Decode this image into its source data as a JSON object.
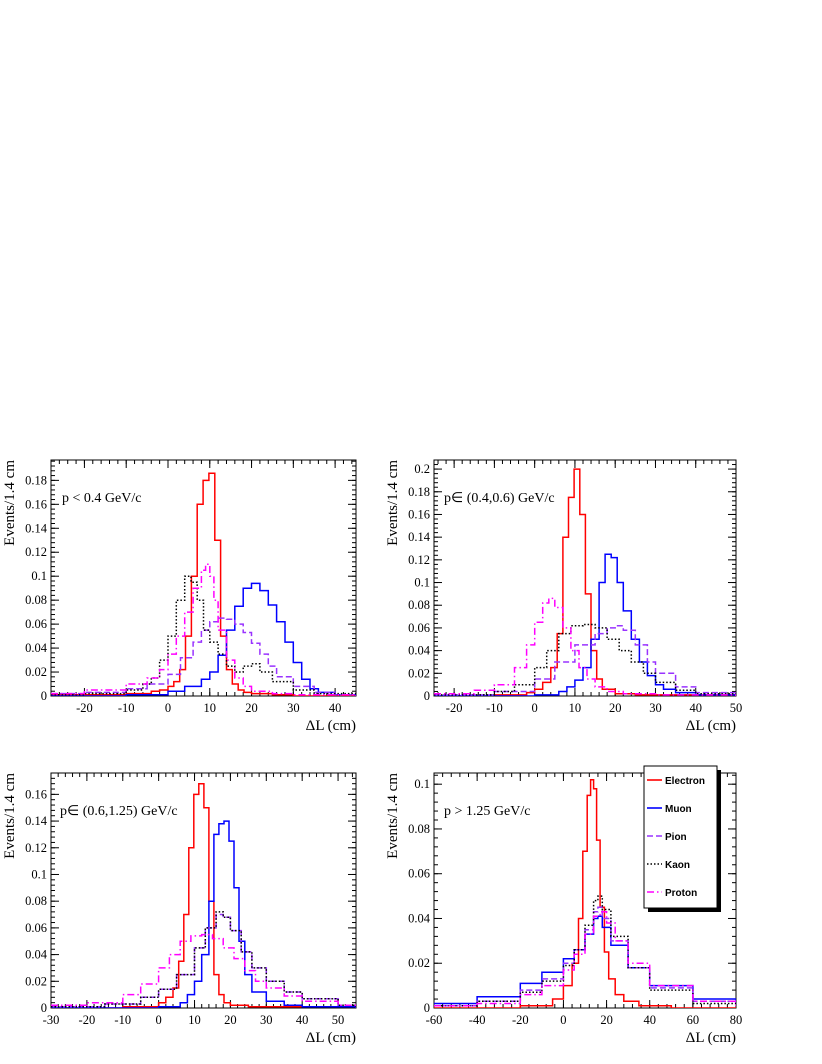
{
  "chart_data": [
    {
      "type": "line",
      "label": "p < 0.4 GeV/c",
      "ylabel": "Events/1.4 cm",
      "xlabel": "ΔL (cm)",
      "xlim": [
        -28,
        45
      ],
      "ylim": [
        0,
        0.197
      ],
      "xticks": [
        -20,
        -10,
        0,
        10,
        20,
        30,
        40
      ],
      "yticks": [
        0.02,
        0.04,
        0.06,
        0.08,
        0.1,
        0.12,
        0.14,
        0.16,
        0.18
      ],
      "ytick_labels": [
        "0.02",
        "0.04",
        "0.06",
        "0.08",
        "0.1",
        "0.12",
        "0.14",
        "0.16",
        "0.18"
      ],
      "y_zero_label": "0",
      "series": [
        {
          "name": "Electron",
          "color": "#ff0000",
          "style": "solid",
          "x": [
            -28,
            -20,
            -10,
            -6,
            -4,
            -2,
            0,
            1.4,
            2.8,
            4.2,
            5.6,
            7,
            8.4,
            9.8,
            11.2,
            12.6,
            14,
            15.4,
            16.8,
            18.2,
            20,
            25,
            30,
            45
          ],
          "y": [
            0.001,
            0.001,
            0.002,
            0.002,
            0.004,
            0.005,
            0.008,
            0.012,
            0.022,
            0.05,
            0.1,
            0.16,
            0.18,
            0.186,
            0.13,
            0.05,
            0.022,
            0.01,
            0.005,
            0.003,
            0.002,
            0.001,
            0,
            0
          ]
        },
        {
          "name": "Muon",
          "color": "#0000ff",
          "style": "solid",
          "x": [
            -28,
            -10,
            0,
            4,
            8,
            10,
            12,
            14,
            16,
            18,
            20,
            22,
            24,
            26,
            28,
            30,
            32,
            34,
            36,
            40,
            45
          ],
          "y": [
            0,
            0.001,
            0.004,
            0.008,
            0.014,
            0.02,
            0.034,
            0.055,
            0.075,
            0.09,
            0.094,
            0.088,
            0.076,
            0.062,
            0.045,
            0.028,
            0.014,
            0.006,
            0.003,
            0.001,
            0
          ]
        },
        {
          "name": "Pion",
          "color": "#9933ff",
          "style": "dashed",
          "x": [
            -28,
            -20,
            -10,
            -5,
            0,
            3,
            6,
            8,
            10,
            12,
            14,
            16,
            18,
            20,
            22,
            24,
            26,
            30,
            35,
            40,
            45
          ],
          "y": [
            0.002,
            0.003,
            0.006,
            0.01,
            0.018,
            0.032,
            0.045,
            0.055,
            0.062,
            0.065,
            0.064,
            0.06,
            0.053,
            0.044,
            0.035,
            0.025,
            0.016,
            0.008,
            0.003,
            0.001,
            0
          ]
        },
        {
          "name": "Kaon",
          "color": "#000000",
          "style": "dotted",
          "x": [
            -28,
            -20,
            -10,
            -6,
            -4,
            -2,
            0,
            2,
            4,
            5.5,
            7,
            8.5,
            10,
            12,
            14,
            16,
            18,
            20,
            22,
            25,
            30,
            35,
            45
          ],
          "y": [
            0.001,
            0.002,
            0.005,
            0.01,
            0.015,
            0.03,
            0.05,
            0.08,
            0.1,
            0.095,
            0.08,
            0.055,
            0.045,
            0.035,
            0.025,
            0.02,
            0.025,
            0.027,
            0.02,
            0.012,
            0.005,
            0.002,
            0
          ]
        },
        {
          "name": "Proton",
          "color": "#ff00ff",
          "style": "dashdot",
          "x": [
            -28,
            -20,
            -10,
            -5,
            -2,
            0,
            2,
            4,
            6,
            8,
            9,
            10,
            11,
            12,
            14,
            16,
            18,
            20,
            25,
            30,
            45
          ],
          "y": [
            0.002,
            0.005,
            0.01,
            0.015,
            0.022,
            0.035,
            0.05,
            0.07,
            0.09,
            0.105,
            0.11,
            0.1,
            0.08,
            0.055,
            0.03,
            0.015,
            0.008,
            0.004,
            0.002,
            0.001,
            0
          ]
        }
      ]
    },
    {
      "type": "line",
      "label": "p∈ (0.4,0.6) GeV/c",
      "ylabel": "Events/1.4 cm",
      "xlabel": "ΔL (cm)",
      "xlim": [
        -25,
        50
      ],
      "ylim": [
        0,
        0.208
      ],
      "xticks": [
        -20,
        -10,
        0,
        10,
        20,
        30,
        40,
        50
      ],
      "yticks": [
        0.02,
        0.04,
        0.06,
        0.08,
        0.1,
        0.12,
        0.14,
        0.16,
        0.18,
        0.2
      ],
      "ytick_labels": [
        "0.02",
        "0.04",
        "0.06",
        "0.08",
        "0.1",
        "0.12",
        "0.14",
        "0.16",
        "0.18",
        "0.2"
      ],
      "y_zero_label": "0",
      "series": [
        {
          "name": "Electron",
          "color": "#ff0000",
          "style": "solid",
          "x": [
            -25,
            -10,
            -2,
            0,
            2,
            4,
            5.6,
            7,
            8.4,
            9.8,
            11.2,
            12.6,
            14,
            15.4,
            16.8,
            20,
            25,
            50
          ],
          "y": [
            0,
            0.001,
            0.003,
            0.006,
            0.012,
            0.025,
            0.055,
            0.14,
            0.175,
            0.2,
            0.16,
            0.09,
            0.04,
            0.015,
            0.006,
            0.002,
            0.001,
            0
          ]
        },
        {
          "name": "Muon",
          "color": "#0000ff",
          "style": "solid",
          "x": [
            -25,
            0,
            6,
            8,
            10,
            12,
            14,
            16,
            17.5,
            19,
            20.5,
            22,
            24,
            26,
            28,
            30,
            32,
            35,
            40,
            50
          ],
          "y": [
            0,
            0.001,
            0.004,
            0.008,
            0.014,
            0.025,
            0.05,
            0.1,
            0.125,
            0.122,
            0.1,
            0.075,
            0.05,
            0.03,
            0.018,
            0.01,
            0.006,
            0.003,
            0.001,
            0
          ]
        },
        {
          "name": "Pion",
          "color": "#9933ff",
          "style": "dashed",
          "x": [
            -25,
            -10,
            0,
            5,
            10,
            15,
            18,
            20,
            22,
            25,
            28,
            30,
            35,
            40,
            50
          ],
          "y": [
            0.001,
            0.004,
            0.015,
            0.03,
            0.045,
            0.055,
            0.06,
            0.062,
            0.058,
            0.045,
            0.03,
            0.02,
            0.008,
            0.003,
            0
          ]
        },
        {
          "name": "Kaon",
          "color": "#000000",
          "style": "dotted",
          "x": [
            -25,
            -10,
            -5,
            0,
            3,
            6,
            9,
            12,
            15,
            18,
            21,
            24,
            27,
            30,
            35,
            40,
            50
          ],
          "y": [
            0.001,
            0.004,
            0.01,
            0.025,
            0.04,
            0.055,
            0.062,
            0.063,
            0.06,
            0.05,
            0.04,
            0.03,
            0.02,
            0.012,
            0.005,
            0.002,
            0
          ]
        },
        {
          "name": "Proton",
          "color": "#ff00ff",
          "style": "dashdot",
          "x": [
            -25,
            -15,
            -10,
            -5,
            -2,
            0,
            2,
            3.5,
            5,
            7,
            9,
            11,
            13,
            15,
            18,
            22,
            30,
            50
          ],
          "y": [
            0.002,
            0.005,
            0.01,
            0.025,
            0.045,
            0.065,
            0.082,
            0.086,
            0.078,
            0.06,
            0.04,
            0.025,
            0.015,
            0.008,
            0.004,
            0.002,
            0.001,
            0
          ]
        }
      ]
    },
    {
      "type": "line",
      "label": "p∈ (0.6,1.25) GeV/c",
      "ylabel": "Events/1.4 cm",
      "xlabel": "ΔL (cm)",
      "xlim": [
        -30,
        55
      ],
      "ylim": [
        0,
        0.176
      ],
      "xticks": [
        -30,
        -20,
        -10,
        0,
        10,
        20,
        30,
        40,
        50
      ],
      "yticks": [
        0.02,
        0.04,
        0.06,
        0.08,
        0.1,
        0.12,
        0.14,
        0.16
      ],
      "ytick_labels": [
        "0.02",
        "0.04",
        "0.06",
        "0.08",
        "0.1",
        "0.12",
        "0.14",
        "0.16"
      ],
      "y_zero_label": "0",
      "series": [
        {
          "name": "Electron",
          "color": "#ff0000",
          "style": "solid",
          "x": [
            -30,
            -10,
            0,
            2,
            4,
            5.6,
            7,
            8.4,
            9.8,
            11.2,
            12.6,
            14,
            15.4,
            16.8,
            18.2,
            20,
            25,
            55
          ],
          "y": [
            0,
            0.001,
            0.004,
            0.008,
            0.015,
            0.035,
            0.07,
            0.12,
            0.16,
            0.168,
            0.15,
            0.08,
            0.025,
            0.01,
            0.004,
            0.002,
            0.001,
            0
          ]
        },
        {
          "name": "Muon",
          "color": "#0000ff",
          "style": "solid",
          "x": [
            -30,
            0,
            6,
            8,
            10,
            12,
            14,
            15.4,
            16.8,
            18.2,
            19.6,
            21,
            22.4,
            24,
            26,
            30,
            35,
            40,
            55
          ],
          "y": [
            0,
            0.001,
            0.004,
            0.01,
            0.02,
            0.04,
            0.08,
            0.13,
            0.138,
            0.14,
            0.125,
            0.09,
            0.05,
            0.025,
            0.012,
            0.005,
            0.002,
            0.001,
            0
          ]
        },
        {
          "name": "Pion",
          "color": "#9933ff",
          "style": "dashed",
          "x": [
            -30,
            -15,
            -5,
            0,
            5,
            10,
            13,
            16,
            18,
            20,
            23,
            26,
            30,
            35,
            40,
            50,
            55
          ],
          "y": [
            0.001,
            0.003,
            0.008,
            0.014,
            0.025,
            0.045,
            0.06,
            0.07,
            0.068,
            0.058,
            0.042,
            0.03,
            0.02,
            0.012,
            0.007,
            0.002,
            0.001
          ]
        },
        {
          "name": "Kaon",
          "color": "#000000",
          "style": "dotted",
          "x": [
            -30,
            -15,
            -5,
            0,
            5,
            10,
            13,
            16,
            18,
            20,
            23,
            26,
            30,
            35,
            40,
            50,
            55
          ],
          "y": [
            0.001,
            0.003,
            0.008,
            0.014,
            0.025,
            0.045,
            0.06,
            0.072,
            0.068,
            0.058,
            0.042,
            0.03,
            0.02,
            0.012,
            0.007,
            0.002,
            0.001
          ]
        },
        {
          "name": "Proton",
          "color": "#ff00ff",
          "style": "dashdot",
          "x": [
            -30,
            -20,
            -10,
            -5,
            0,
            3,
            6,
            9,
            12,
            15,
            18,
            21,
            24,
            27,
            30,
            35,
            40,
            50,
            55
          ],
          "y": [
            0.002,
            0.004,
            0.01,
            0.018,
            0.03,
            0.04,
            0.05,
            0.054,
            0.055,
            0.052,
            0.045,
            0.037,
            0.028,
            0.02,
            0.015,
            0.009,
            0.005,
            0.002,
            0.001
          ]
        }
      ]
    },
    {
      "type": "line",
      "label": "p > 1.25 GeV/c",
      "ylabel": "Events/1.4 cm",
      "xlabel": "ΔL (cm)",
      "xlim": [
        -60,
        80
      ],
      "ylim": [
        0,
        0.105
      ],
      "xticks": [
        -60,
        -40,
        -20,
        0,
        20,
        40,
        60,
        80
      ],
      "yticks": [
        0.02,
        0.04,
        0.06,
        0.08,
        0.1
      ],
      "ytick_labels": [
        "0.02",
        "0.04",
        "0.06",
        "0.08",
        "0.1"
      ],
      "y_zero_label": "0",
      "series": [
        {
          "name": "Electron",
          "color": "#ff0000",
          "style": "solid",
          "x": [
            -60,
            -20,
            -5,
            0,
            4,
            7,
            9,
            11,
            12.6,
            14,
            15.4,
            17,
            19,
            21,
            24,
            28,
            35,
            50,
            80
          ],
          "y": [
            0,
            0.001,
            0.004,
            0.01,
            0.02,
            0.04,
            0.07,
            0.095,
            0.102,
            0.098,
            0.075,
            0.045,
            0.025,
            0.013,
            0.006,
            0.003,
            0.001,
            0,
            0
          ]
        },
        {
          "name": "Muon",
          "color": "#0000ff",
          "style": "solid",
          "x": [
            -60,
            -40,
            -20,
            -10,
            0,
            5,
            10,
            14,
            16,
            18,
            22,
            30,
            40,
            60,
            80
          ],
          "y": [
            0.002,
            0.005,
            0.011,
            0.016,
            0.022,
            0.026,
            0.033,
            0.04,
            0.041,
            0.036,
            0.028,
            0.018,
            0.01,
            0.004,
            0.002
          ]
        },
        {
          "name": "Pion",
          "color": "#9933ff",
          "style": "dashed",
          "x": [
            -60,
            -40,
            -20,
            -10,
            0,
            5,
            10,
            14,
            16,
            18,
            22,
            30,
            40,
            60,
            80
          ],
          "y": [
            0.001,
            0.003,
            0.008,
            0.013,
            0.02,
            0.026,
            0.035,
            0.043,
            0.045,
            0.04,
            0.03,
            0.018,
            0.009,
            0.003,
            0.001
          ]
        },
        {
          "name": "Kaon",
          "color": "#000000",
          "style": "dotted",
          "x": [
            -60,
            -40,
            -20,
            -10,
            0,
            5,
            10,
            14,
            16,
            18,
            22,
            30,
            40,
            60,
            80
          ],
          "y": [
            0.001,
            0.003,
            0.007,
            0.012,
            0.019,
            0.026,
            0.037,
            0.048,
            0.05,
            0.044,
            0.032,
            0.018,
            0.008,
            0.002,
            0.001
          ]
        },
        {
          "name": "Proton",
          "color": "#ff00ff",
          "style": "dashdot",
          "x": [
            -60,
            -40,
            -20,
            -10,
            0,
            5,
            10,
            14,
            17,
            20,
            24,
            30,
            40,
            60,
            80
          ],
          "y": [
            0.001,
            0.002,
            0.006,
            0.01,
            0.017,
            0.024,
            0.033,
            0.041,
            0.043,
            0.038,
            0.03,
            0.02,
            0.01,
            0.003,
            0.001
          ]
        }
      ]
    }
  ],
  "legend": {
    "placement": "top-right of lower-right panel",
    "entries": [
      {
        "label": "Electron",
        "color": "#ff0000",
        "style": "solid"
      },
      {
        "label": "Muon",
        "color": "#0000ff",
        "style": "solid"
      },
      {
        "label": "Pion",
        "color": "#9933ff",
        "style": "dashed"
      },
      {
        "label": "Kaon",
        "color": "#000000",
        "style": "dotted"
      },
      {
        "label": "Proton",
        "color": "#ff00ff",
        "style": "dashdot"
      }
    ]
  }
}
